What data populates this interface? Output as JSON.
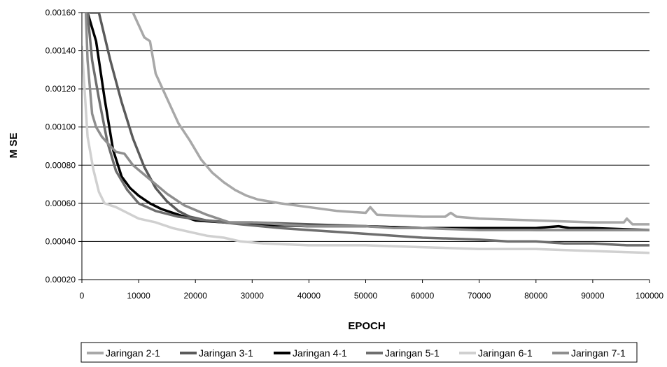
{
  "chart_data": {
    "type": "line",
    "title": "",
    "xlabel": "EPOCH",
    "ylabel": "M SE",
    "xlim": [
      0,
      100000
    ],
    "ylim": [
      0.0002,
      0.0016
    ],
    "x_ticks": [
      "0",
      "10000",
      "20000",
      "30000",
      "40000",
      "50000",
      "60000",
      "70000",
      "80000",
      "90000",
      "100000"
    ],
    "y_ticks": [
      "0.00020",
      "0.00040",
      "0.00060",
      "0.00080",
      "0.00100",
      "0.00120",
      "0.00140",
      "0.00160"
    ],
    "grid": "horizontal",
    "legend_position": "bottom",
    "series": [
      {
        "name": "Jaringan 2-1",
        "color": "#a8a8a8",
        "points": [
          [
            9000,
            0.0016
          ],
          [
            11000,
            0.00147
          ],
          [
            12000,
            0.00145
          ],
          [
            13000,
            0.00128
          ],
          [
            15000,
            0.00115
          ],
          [
            17000,
            0.00102
          ],
          [
            19000,
            0.00093
          ],
          [
            21000,
            0.00083
          ],
          [
            23000,
            0.00076
          ],
          [
            25000,
            0.00071
          ],
          [
            27000,
            0.00067
          ],
          [
            29000,
            0.00064
          ],
          [
            31000,
            0.00062
          ],
          [
            35000,
            0.0006
          ],
          [
            40000,
            0.00058
          ],
          [
            45000,
            0.00056
          ],
          [
            50000,
            0.00055
          ],
          [
            50800,
            0.00058
          ],
          [
            52000,
            0.00054
          ],
          [
            60000,
            0.00053
          ],
          [
            64000,
            0.00053
          ],
          [
            65000,
            0.00055
          ],
          [
            66000,
            0.00053
          ],
          [
            70000,
            0.00052
          ],
          [
            80000,
            0.00051
          ],
          [
            90000,
            0.0005
          ],
          [
            95500,
            0.0005
          ],
          [
            96000,
            0.00052
          ],
          [
            97000,
            0.00049
          ],
          [
            100000,
            0.00049
          ]
        ]
      },
      {
        "name": "Jaringan 3-1",
        "color": "#5a5a5a",
        "points": [
          [
            1500,
            0.0016
          ],
          [
            3000,
            0.0016
          ],
          [
            5000,
            0.00135
          ],
          [
            7000,
            0.00113
          ],
          [
            9000,
            0.00094
          ],
          [
            11000,
            0.00079
          ],
          [
            13000,
            0.00068
          ],
          [
            15000,
            0.00061
          ],
          [
            17000,
            0.00056
          ],
          [
            19000,
            0.00053
          ],
          [
            22000,
            0.00051
          ],
          [
            26000,
            0.0005
          ],
          [
            30000,
            0.0005
          ],
          [
            40000,
            0.00049
          ],
          [
            50000,
            0.00048
          ],
          [
            60000,
            0.00047
          ],
          [
            70000,
            0.00047
          ],
          [
            80000,
            0.00046
          ],
          [
            90000,
            0.00046
          ],
          [
            100000,
            0.00046
          ]
        ]
      },
      {
        "name": "Jaringan 4-1",
        "color": "#000000",
        "points": [
          [
            1000,
            0.0016
          ],
          [
            2500,
            0.00145
          ],
          [
            4000,
            0.00115
          ],
          [
            5500,
            0.00088
          ],
          [
            7000,
            0.00074
          ],
          [
            8500,
            0.00068
          ],
          [
            10000,
            0.00064
          ],
          [
            12000,
            0.0006
          ],
          [
            14000,
            0.00057
          ],
          [
            17000,
            0.00054
          ],
          [
            20000,
            0.00051
          ],
          [
            25000,
            0.0005
          ],
          [
            30000,
            0.00049
          ],
          [
            40000,
            0.00048
          ],
          [
            50000,
            0.00048
          ],
          [
            60000,
            0.00047
          ],
          [
            70000,
            0.00047
          ],
          [
            80000,
            0.00047
          ],
          [
            84000,
            0.00048
          ],
          [
            86000,
            0.00047
          ],
          [
            90000,
            0.00047
          ],
          [
            100000,
            0.00046
          ]
        ]
      },
      {
        "name": "Jaringan 5-1",
        "color": "#6e6e6e",
        "points": [
          [
            1000,
            0.0016
          ],
          [
            1800,
            0.00135
          ],
          [
            3000,
            0.00115
          ],
          [
            4500,
            0.00092
          ],
          [
            6000,
            0.00077
          ],
          [
            8000,
            0.00067
          ],
          [
            10000,
            0.0006
          ],
          [
            13000,
            0.00056
          ],
          [
            17000,
            0.00053
          ],
          [
            22000,
            0.00051
          ],
          [
            28000,
            0.00049
          ],
          [
            35000,
            0.00047
          ],
          [
            40000,
            0.00046
          ],
          [
            45000,
            0.00045
          ],
          [
            50000,
            0.00044
          ],
          [
            60000,
            0.00042
          ],
          [
            70000,
            0.00041
          ],
          [
            75000,
            0.0004
          ],
          [
            80000,
            0.0004
          ],
          [
            85000,
            0.00039
          ],
          [
            90000,
            0.00039
          ],
          [
            96000,
            0.00038
          ],
          [
            100000,
            0.00038
          ]
        ]
      },
      {
        "name": "Jaringan 6-1",
        "color": "#d0d0d0",
        "points": [
          [
            0,
            0.00142
          ],
          [
            1000,
            0.00095
          ],
          [
            2000,
            0.00078
          ],
          [
            3000,
            0.00066
          ],
          [
            4000,
            0.0006
          ],
          [
            6000,
            0.00058
          ],
          [
            8000,
            0.00055
          ],
          [
            10000,
            0.00052
          ],
          [
            13000,
            0.0005
          ],
          [
            16000,
            0.00047
          ],
          [
            19000,
            0.00045
          ],
          [
            22000,
            0.00043
          ],
          [
            25000,
            0.00042
          ],
          [
            28000,
            0.0004
          ],
          [
            32000,
            0.00039
          ],
          [
            40000,
            0.00038
          ],
          [
            50000,
            0.00038
          ],
          [
            60000,
            0.00037
          ],
          [
            70000,
            0.00036
          ],
          [
            80000,
            0.00036
          ],
          [
            90000,
            0.00035
          ],
          [
            100000,
            0.00034
          ]
        ]
      },
      {
        "name": "Jaringan 7-1",
        "color": "#8e8e8e",
        "points": [
          [
            700,
            0.0016
          ],
          [
            1000,
            0.00135
          ],
          [
            1800,
            0.00107
          ],
          [
            2500,
            0.001
          ],
          [
            3500,
            0.00095
          ],
          [
            5000,
            0.0009
          ],
          [
            6000,
            0.00087
          ],
          [
            7500,
            0.00086
          ],
          [
            9000,
            0.0008
          ],
          [
            11000,
            0.00075
          ],
          [
            13000,
            0.0007
          ],
          [
            15000,
            0.00065
          ],
          [
            18000,
            0.00059
          ],
          [
            22000,
            0.00054
          ],
          [
            26000,
            0.0005
          ],
          [
            30000,
            0.0005
          ],
          [
            35000,
            0.00049
          ],
          [
            40000,
            0.00048
          ],
          [
            45000,
            0.00048
          ],
          [
            50000,
            0.00048
          ],
          [
            55000,
            0.00047
          ],
          [
            60000,
            0.00047
          ],
          [
            70000,
            0.00046
          ],
          [
            80000,
            0.00046
          ],
          [
            90000,
            0.00046
          ],
          [
            100000,
            0.00046
          ]
        ]
      }
    ]
  }
}
